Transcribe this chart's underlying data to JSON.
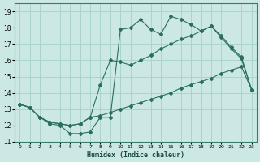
{
  "title": "",
  "xlabel": "Humidex (Indice chaleur)",
  "bg_color": "#cce8e4",
  "grid_color": "#a8d0ca",
  "line_color": "#2a6e62",
  "xlim": [
    -0.5,
    23.5
  ],
  "ylim": [
    11,
    19.5
  ],
  "xticks": [
    0,
    1,
    2,
    3,
    4,
    5,
    6,
    7,
    8,
    9,
    10,
    11,
    12,
    13,
    14,
    15,
    16,
    17,
    18,
    19,
    20,
    21,
    22,
    23
  ],
  "yticks": [
    11,
    12,
    13,
    14,
    15,
    16,
    17,
    18,
    19
  ],
  "line1_x": [
    0,
    1,
    2,
    3,
    4,
    5,
    6,
    7,
    8,
    9,
    10,
    11,
    12,
    13,
    14,
    15,
    16,
    17,
    18,
    19,
    20,
    21,
    22,
    23
  ],
  "line1_y": [
    13.3,
    13.1,
    12.5,
    12.1,
    12.0,
    11.5,
    11.5,
    11.6,
    12.5,
    12.5,
    17.9,
    18.0,
    18.5,
    17.9,
    17.6,
    18.7,
    18.5,
    18.2,
    17.8,
    18.1,
    17.4,
    16.7,
    16.1,
    14.2
  ],
  "line2_x": [
    0,
    1,
    2,
    3,
    4,
    5,
    6,
    7,
    8,
    9,
    10,
    11,
    12,
    13,
    14,
    15,
    16,
    17,
    18,
    19,
    20,
    21,
    22,
    23
  ],
  "line2_y": [
    13.3,
    13.1,
    12.5,
    12.2,
    12.1,
    12.0,
    12.1,
    12.5,
    14.5,
    16.0,
    15.9,
    15.7,
    16.0,
    16.3,
    16.7,
    17.0,
    17.3,
    17.5,
    17.8,
    18.1,
    17.5,
    16.8,
    16.2,
    14.2
  ],
  "line3_x": [
    0,
    1,
    2,
    3,
    4,
    5,
    6,
    7,
    8,
    9,
    10,
    11,
    12,
    13,
    14,
    15,
    16,
    17,
    18,
    19,
    20,
    21,
    22,
    23
  ],
  "line3_y": [
    13.3,
    13.1,
    12.5,
    12.2,
    12.1,
    12.0,
    12.1,
    12.5,
    12.6,
    12.8,
    13.0,
    13.2,
    13.4,
    13.6,
    13.8,
    14.0,
    14.3,
    14.5,
    14.7,
    14.9,
    15.2,
    15.4,
    15.6,
    14.2
  ]
}
